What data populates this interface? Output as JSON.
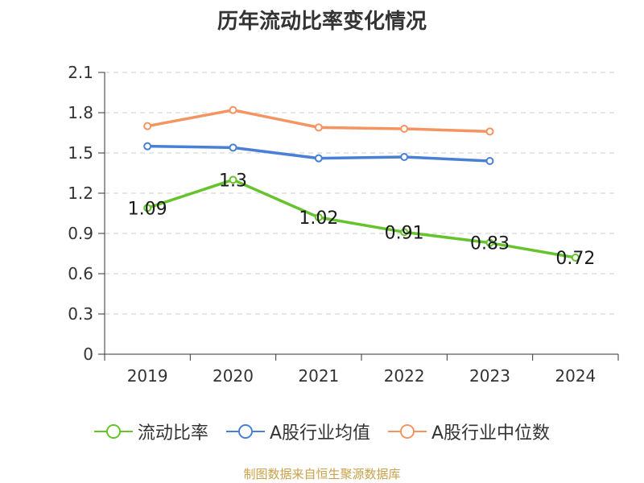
{
  "chart_data": {
    "type": "line",
    "title": "历年流动比率变化情况",
    "categories": [
      "2019",
      "2020",
      "2021",
      "2022",
      "2023",
      "2024"
    ],
    "ylim": [
      0,
      2.1
    ],
    "yticks": [
      "0",
      "0.3",
      "0.6",
      "0.9",
      "1.2",
      "1.5",
      "1.8",
      "2.1"
    ],
    "grid": true,
    "legend_position": "bottom",
    "series": [
      {
        "name": "流动比率",
        "color": "#66c32e",
        "values": [
          1.09,
          1.3,
          1.02,
          0.91,
          0.83,
          0.72
        ],
        "labels": [
          "1.09",
          "1.3",
          "1.02",
          "0.91",
          "0.83",
          "0.72"
        ]
      },
      {
        "name": "A股行业均值",
        "color": "#4a7fd6",
        "values": [
          1.55,
          1.54,
          1.46,
          1.47,
          1.44,
          null
        ]
      },
      {
        "name": "A股行业中位数",
        "color": "#f59461",
        "values": [
          1.7,
          1.82,
          1.69,
          1.68,
          1.66,
          null
        ]
      }
    ]
  },
  "source": "制图数据来自恒生聚源数据库"
}
